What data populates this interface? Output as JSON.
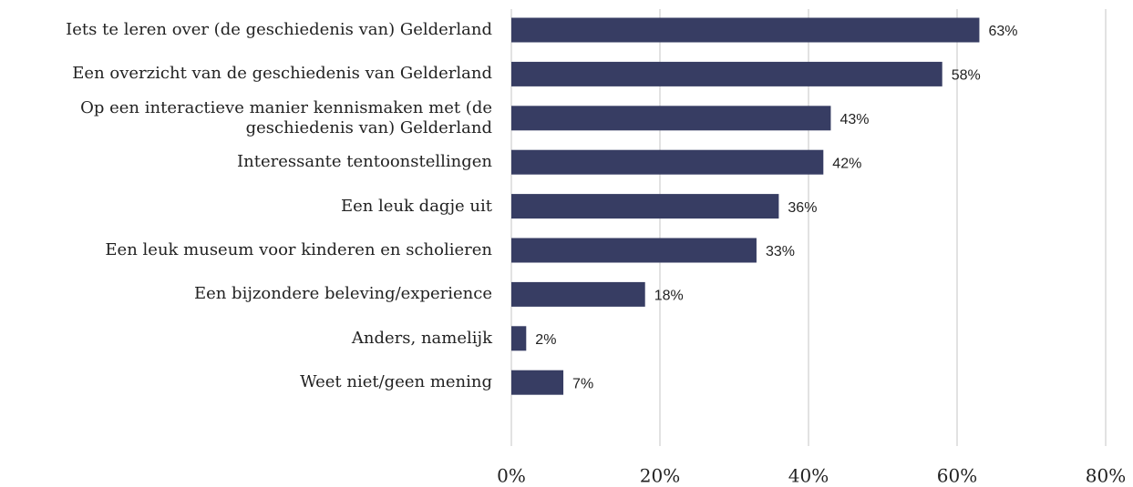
{
  "chart_data": {
    "type": "bar",
    "orientation": "horizontal",
    "categories": [
      "Iets te leren over (de geschiedenis van) Gelderland",
      "Een overzicht van de geschiedenis van Gelderland",
      "Op een interactieve manier kennismaken met (de\ngeschiedenis van) Gelderland",
      "Interessante tentoonstellingen",
      "Een leuk dagje uit",
      "Een leuk museum voor kinderen en scholieren",
      "Een bijzondere beleving/experience",
      "Anders, namelijk",
      "Weet niet/geen mening"
    ],
    "values": [
      63,
      58,
      43,
      42,
      36,
      33,
      18,
      2,
      7
    ],
    "value_labels": [
      "63%",
      "58%",
      "43%",
      "42%",
      "36%",
      "33%",
      "18%",
      "2%",
      "7%"
    ],
    "color": "#373d63",
    "xlim": [
      0,
      80
    ],
    "xticks": [
      {
        "value": 0,
        "label": "0%"
      },
      {
        "value": 20,
        "label": "20%"
      },
      {
        "value": 40,
        "label": "40%"
      },
      {
        "value": 60,
        "label": "60%"
      },
      {
        "value": 80,
        "label": "80%"
      }
    ],
    "grid": true
  }
}
